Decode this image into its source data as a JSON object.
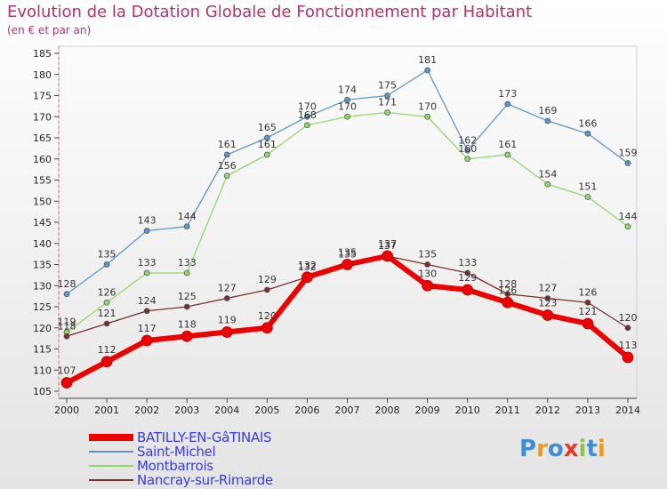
{
  "chart_data": {
    "type": "line",
    "title": "Evolution de la Dotation Globale de Fonctionnement par Habitant",
    "subtitle": "(en € et par an)",
    "x": [
      2000,
      2001,
      2002,
      2003,
      2004,
      2005,
      2006,
      2007,
      2008,
      2009,
      2010,
      2011,
      2012,
      2013,
      2014
    ],
    "ylim": [
      105,
      185
    ],
    "yticks": [
      105,
      110,
      115,
      120,
      125,
      130,
      135,
      140,
      145,
      150,
      155,
      160,
      165,
      170,
      175,
      180,
      185
    ],
    "grid": false,
    "legend_position": "bottom-left",
    "series": [
      {
        "name": "Saint-Michel",
        "color": "#5b97cc",
        "values": [
          128,
          135,
          143,
          144,
          161,
          165,
          170,
          174,
          175,
          181,
          162,
          173,
          169,
          166,
          159
        ]
      },
      {
        "name": "Montbarrois",
        "color": "#8fd96a",
        "values": [
          119,
          126,
          133,
          133,
          156,
          161,
          168,
          170,
          171,
          170,
          160,
          161,
          154,
          151,
          144
        ]
      },
      {
        "name": "Nancray-sur-Rimarde",
        "color": "#7a2e2e",
        "values": [
          118,
          121,
          124,
          125,
          127,
          129,
          132,
          135,
          137,
          135,
          133,
          128,
          127,
          126,
          120
        ]
      },
      {
        "name": "BATILLY-EN-GâTINAIS",
        "color": "#ee0000",
        "values": [
          107,
          112,
          117,
          118,
          119,
          120,
          132,
          135,
          137,
          130,
          129,
          126,
          123,
          121,
          113
        ]
      }
    ],
    "legend_order": [
      "BATILLY-EN-GâTINAIS",
      "Saint-Michel",
      "Montbarrois",
      "Nancray-sur-Rimarde"
    ]
  },
  "logo": {
    "text": "Proxiti",
    "letter_colors": [
      "#3a8fd8",
      "#f09a1c",
      "#3a8fd8",
      "#e83a2a",
      "#8fc63f",
      "#3a8fd8",
      "#f09a1c"
    ]
  }
}
